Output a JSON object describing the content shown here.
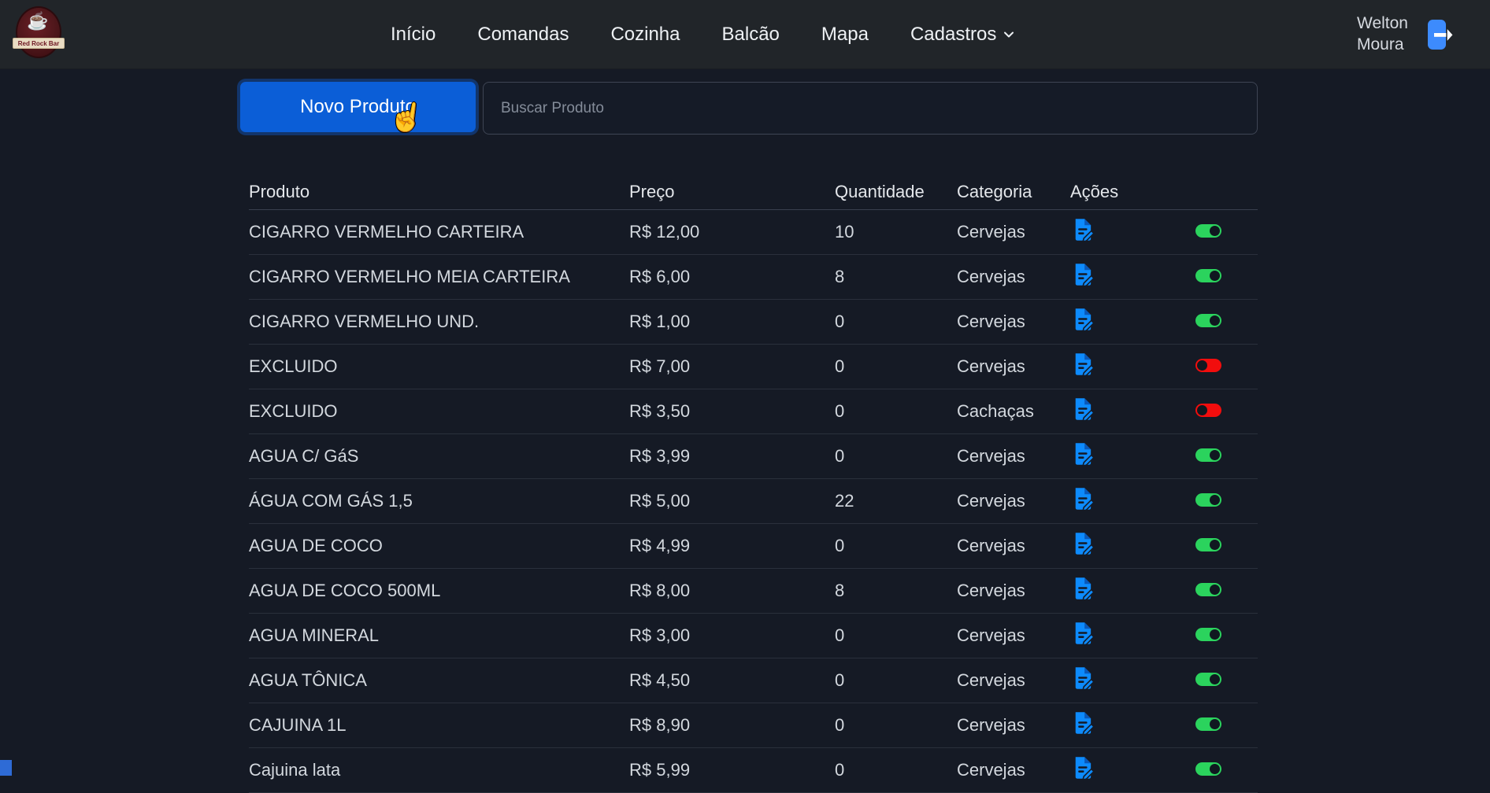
{
  "brand": {
    "name": "Red Rock Bar"
  },
  "navbar": {
    "items": [
      {
        "label": "Início"
      },
      {
        "label": "Comandas"
      },
      {
        "label": "Cozinha"
      },
      {
        "label": "Balcão"
      },
      {
        "label": "Mapa"
      },
      {
        "label": "Cadastros",
        "dropdown": true
      }
    ],
    "user_name": "Welton Moura"
  },
  "toolbar": {
    "new_product_button": "Novo Produto",
    "search_placeholder": "Buscar Produto"
  },
  "table": {
    "headers": [
      "Produto",
      "Preço",
      "Quantidade",
      "Categoria",
      "Ações"
    ],
    "rows": [
      {
        "produto": "CIGARRO VERMELHO CARTEIRA",
        "preco": "R$ 12,00",
        "quantidade": "10",
        "categoria": "Cervejas",
        "ativo": true
      },
      {
        "produto": "CIGARRO VERMELHO MEIA CARTEIRA",
        "preco": "R$ 6,00",
        "quantidade": "8",
        "categoria": "Cervejas",
        "ativo": true
      },
      {
        "produto": "CIGARRO VERMELHO UND.",
        "preco": "R$ 1,00",
        "quantidade": "0",
        "categoria": "Cervejas",
        "ativo": true
      },
      {
        "produto": "EXCLUIDO",
        "preco": "R$ 7,00",
        "quantidade": "0",
        "categoria": "Cervejas",
        "ativo": false
      },
      {
        "produto": "EXCLUIDO",
        "preco": "R$ 3,50",
        "quantidade": "0",
        "categoria": "Cachaças",
        "ativo": false
      },
      {
        "produto": "AGUA C/ GáS",
        "preco": "R$ 3,99",
        "quantidade": "0",
        "categoria": "Cervejas",
        "ativo": true
      },
      {
        "produto": "ÁGUA COM GÁS 1,5",
        "preco": "R$ 5,00",
        "quantidade": "22",
        "categoria": "Cervejas",
        "ativo": true
      },
      {
        "produto": "AGUA DE COCO",
        "preco": "R$ 4,99",
        "quantidade": "0",
        "categoria": "Cervejas",
        "ativo": true
      },
      {
        "produto": "AGUA DE COCO 500ML",
        "preco": "R$ 8,00",
        "quantidade": "8",
        "categoria": "Cervejas",
        "ativo": true
      },
      {
        "produto": "AGUA MINERAL",
        "preco": "R$ 3,00",
        "quantidade": "0",
        "categoria": "Cervejas",
        "ativo": true
      },
      {
        "produto": "AGUA TÔNICA",
        "preco": "R$ 4,50",
        "quantidade": "0",
        "categoria": "Cervejas",
        "ativo": true
      },
      {
        "produto": "CAJUINA 1L",
        "preco": "R$ 8,90",
        "quantidade": "0",
        "categoria": "Cervejas",
        "ativo": true
      },
      {
        "produto": "Cajuina lata",
        "preco": "R$ 5,99",
        "quantidade": "0",
        "categoria": "Cervejas",
        "ativo": true
      }
    ]
  },
  "colors": {
    "primary_button": "#0b5ed7",
    "edit_icon": "#0d8bfd",
    "toggle_on": "#2bd35d",
    "toggle_off": "#f20d0d",
    "logout_icon": "#3d8bfd"
  }
}
